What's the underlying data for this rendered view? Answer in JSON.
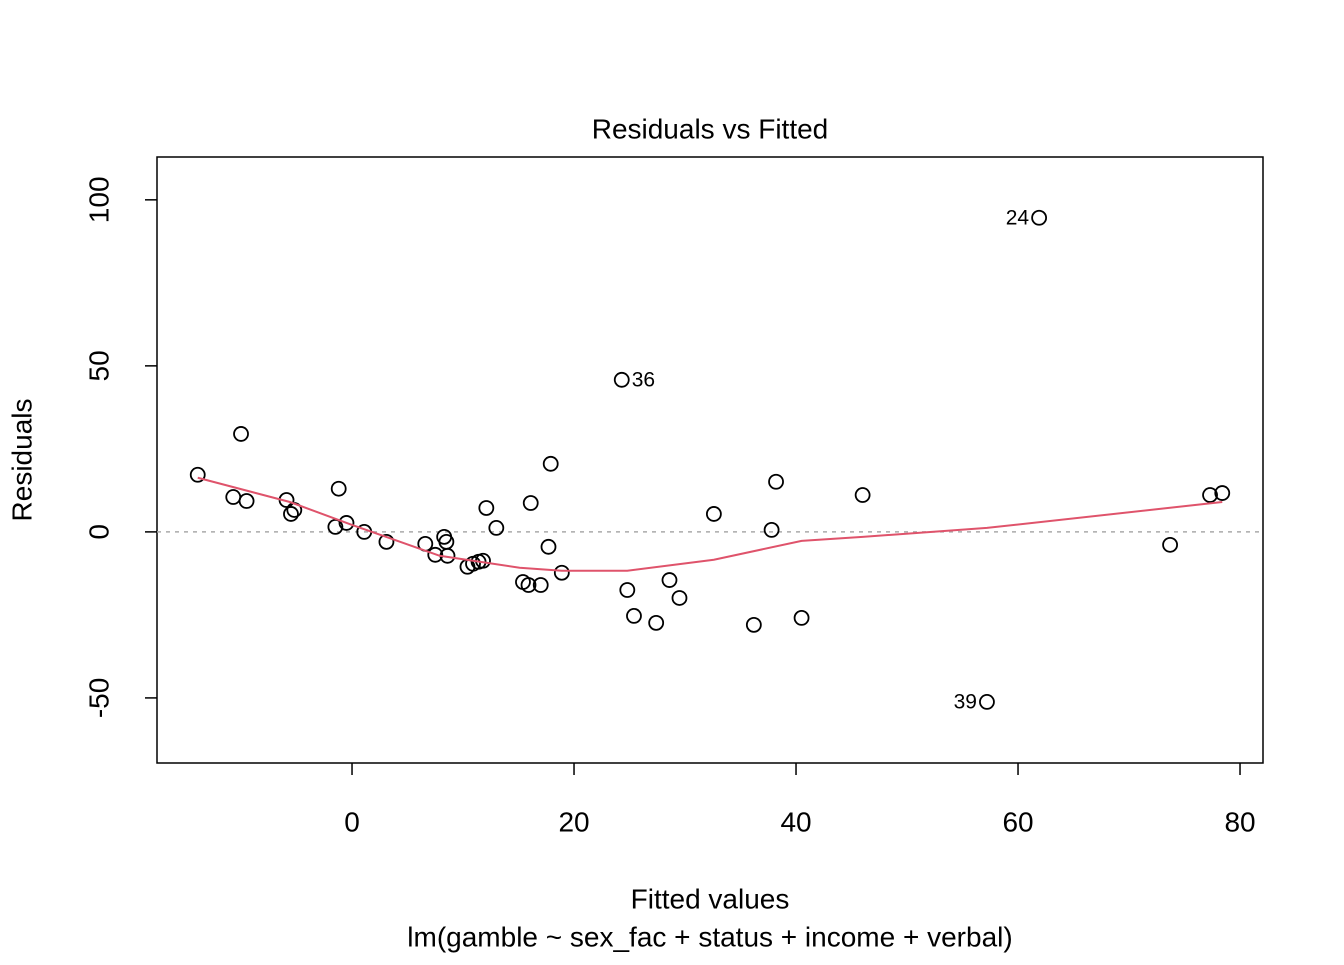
{
  "chart_data": {
    "type": "scatter",
    "title": "Residuals vs Fitted",
    "xlabel": "Fitted values",
    "caption": "lm(gamble ~ sex_fac + status + income + verbal)",
    "ylabel": "Residuals",
    "xlim": [
      -17.57,
      82.07
    ],
    "ylim": [
      -69.6,
      112.9
    ],
    "xticks": [
      0,
      20,
      40,
      60,
      80
    ],
    "yticks": [
      -50,
      0,
      50,
      100
    ],
    "reference_line": 0,
    "series": [
      {
        "color": "#000000",
        "x": [
          -13.9,
          -10.7,
          -10.0,
          -9.5,
          -5.9,
          -5.5,
          -5.2,
          -1.2,
          -1.5,
          -0.5,
          1.1,
          3.1,
          6.6,
          7.5,
          8.3,
          8.5,
          8.6,
          10.4,
          10.9,
          11.4,
          11.8,
          12.1,
          13.0,
          15.4,
          15.9,
          16.1,
          17.0,
          17.7,
          17.9,
          18.9,
          24.3,
          24.8,
          25.4,
          27.4,
          28.6,
          29.5,
          32.6,
          36.2,
          37.8,
          38.2,
          40.5,
          46.0,
          57.2,
          61.9,
          73.7,
          77.3,
          78.4
        ],
        "values": [
          17.2,
          10.5,
          29.5,
          9.3,
          9.6,
          5.4,
          6.6,
          13.0,
          1.5,
          2.7,
          0,
          -3.0,
          -3.6,
          -6.9,
          -1.5,
          -3.0,
          -7.2,
          -10.5,
          -9.6,
          -9.0,
          -8.7,
          7.2,
          1.2,
          -15.1,
          -16.0,
          8.7,
          -16.0,
          -4.5,
          20.5,
          -12.3,
          45.8,
          -17.5,
          -25.3,
          -27.4,
          -14.5,
          -19.9,
          5.4,
          -28.0,
          0.6,
          15.1,
          -25.9,
          11.1,
          -51.2,
          94.6,
          -3.9,
          11.1,
          11.7
        ],
        "point_labels": [
          null,
          null,
          null,
          null,
          null,
          null,
          null,
          null,
          null,
          null,
          null,
          null,
          null,
          null,
          null,
          null,
          null,
          null,
          null,
          null,
          null,
          null,
          null,
          null,
          null,
          null,
          null,
          null,
          null,
          null,
          "36",
          null,
          null,
          null,
          null,
          null,
          null,
          null,
          null,
          null,
          null,
          null,
          "39",
          "24",
          null,
          null,
          null
        ]
      },
      {
        "type": "line",
        "color": "#DF536B",
        "x": [
          -13.9,
          -5.6,
          0,
          7.9,
          15.1,
          18.9,
          24.8,
          32.6,
          40.5,
          46.0,
          57.2,
          78.4
        ],
        "values": [
          16.3,
          9.0,
          2.1,
          -7.2,
          -10.8,
          -11.7,
          -11.7,
          -8.4,
          -2.7,
          -1.5,
          1.2,
          9.0
        ]
      }
    ]
  }
}
